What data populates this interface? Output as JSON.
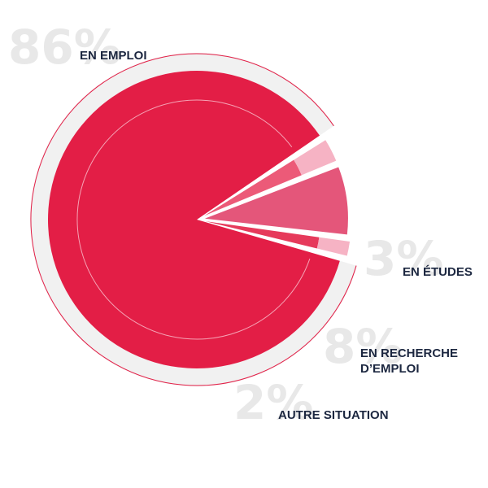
{
  "chart_data": {
    "type": "pie",
    "title": "",
    "unit": "%",
    "slices": [
      {
        "name": "EN EMPLOI",
        "label_lines": [
          "EN EMPLOI"
        ],
        "value": 86,
        "value_label": "86%",
        "color": "#e31e46",
        "track_color": "#f1f1f1"
      },
      {
        "name": "EN ÉTUDES",
        "label_lines": [
          "EN ÉTUDES"
        ],
        "value": 3,
        "value_label": "3%",
        "color": "#ec5a78",
        "track_color": "#f6b3c4"
      },
      {
        "name": "EN RECHERCHE D’EMPLOI",
        "label_lines": [
          "EN RECHERCHE",
          "D’EMPLOI"
        ],
        "value": 8,
        "value_label": "8%",
        "color": "#e4567a",
        "track_color": "#e4567a"
      },
      {
        "name": "AUTRE SITUATION",
        "label_lines": [
          "AUTRE SITUATION"
        ],
        "value": 2,
        "value_label": "2%",
        "color": "#e63a5b",
        "track_color": "#f6b3c4"
      }
    ],
    "legend": "none",
    "colors": {
      "primary": "#e31e46",
      "text": "#1c2740",
      "big_number": "#e8e8e8",
      "track": "#f1f1f1"
    }
  }
}
